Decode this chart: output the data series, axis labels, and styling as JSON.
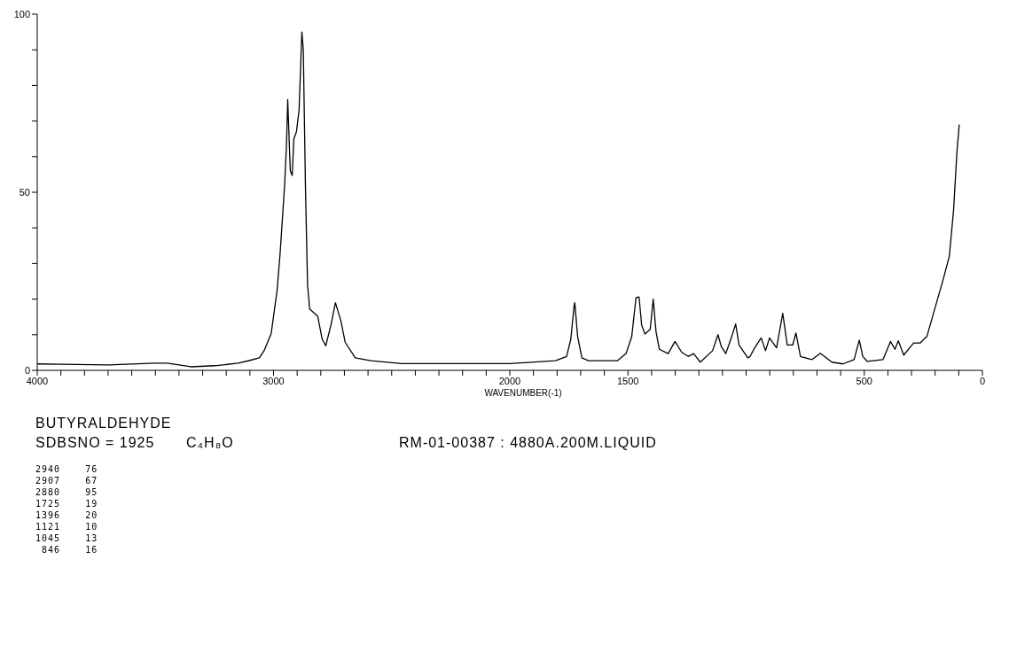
{
  "chart_data": {
    "type": "line",
    "title": "BUTYRALDEHYDE",
    "xlabel": "WAVENUMBER(-1)",
    "annotations": [
      "SDBSNO = 1925",
      "C₄H₈O",
      "RM-01-00387 : 4880A.200M.LIQUID",
      "2940    76",
      "2907    67",
      "2880    95",
      "1725    19",
      "1396    20",
      "1121    10",
      "1045    13",
      " 846    16"
    ],
    "xlim": [
      4000,
      0
    ],
    "xticks": [
      {
        "value": 4000,
        "label": "4000"
      },
      {
        "value": 3900,
        "label": null
      },
      {
        "value": 3800,
        "label": null
      },
      {
        "value": 3700,
        "label": null
      },
      {
        "value": 3600,
        "label": null
      },
      {
        "value": 3500,
        "label": null
      },
      {
        "value": 3400,
        "label": null
      },
      {
        "value": 3300,
        "label": null
      },
      {
        "value": 3200,
        "label": null
      },
      {
        "value": 3100,
        "label": null
      },
      {
        "value": 3000,
        "label": "3000"
      },
      {
        "value": 2900,
        "label": null
      },
      {
        "value": 2800,
        "label": null
      },
      {
        "value": 2700,
        "label": null
      },
      {
        "value": 2600,
        "label": null
      },
      {
        "value": 2500,
        "label": null
      },
      {
        "value": 2400,
        "label": null
      },
      {
        "value": 2300,
        "label": null
      },
      {
        "value": 2200,
        "label": null
      },
      {
        "value": 2100,
        "label": null
      },
      {
        "value": 2000,
        "label": "2000"
      },
      {
        "value": 1900,
        "label": null
      },
      {
        "value": 1800,
        "label": null
      },
      {
        "value": 1700,
        "label": null
      },
      {
        "value": 1600,
        "label": null
      },
      {
        "value": 1500,
        "label": "1500"
      },
      {
        "value": 1400,
        "label": null
      },
      {
        "value": 1300,
        "label": null
      },
      {
        "value": 1200,
        "label": null
      },
      {
        "value": 1100,
        "label": null
      },
      {
        "value": 1000,
        "label": null
      },
      {
        "value": 900,
        "label": null
      },
      {
        "value": 800,
        "label": null
      },
      {
        "value": 700,
        "label": null
      },
      {
        "value": 600,
        "label": null
      },
      {
        "value": 500,
        "label": "500"
      },
      {
        "value": 400,
        "label": null
      },
      {
        "value": 300,
        "label": null
      },
      {
        "value": 200,
        "label": null
      },
      {
        "value": 100,
        "label": null
      },
      {
        "value": 0,
        "label": "0"
      }
    ],
    "ylim": [
      0,
      100
    ],
    "yticks": [
      0,
      {
        "value": 10,
        "label": null
      },
      {
        "value": 20,
        "label": null
      },
      {
        "value": 30,
        "label": null
      },
      {
        "value": 40,
        "label": null
      },
      50,
      {
        "value": 60,
        "label": null
      },
      {
        "value": 70,
        "label": null
      },
      {
        "value": 80,
        "label": null
      },
      {
        "value": 90,
        "label": null
      },
      100
    ],
    "series": [
      {
        "color": "#000000",
        "x": [
          4000,
          3900,
          3700,
          3500,
          3450,
          3350,
          3250,
          3150,
          3100,
          3060,
          3040,
          3010,
          2985,
          2972,
          2953,
          2945,
          2940,
          2929,
          2921,
          2914,
          2903,
          2892,
          2880,
          2874,
          2865,
          2856,
          2847,
          2813,
          2794,
          2779,
          2757,
          2738,
          2715,
          2697,
          2654,
          2588,
          2457,
          2000,
          1807,
          1760,
          1742,
          1728,
          1725,
          1713,
          1695,
          1667,
          1545,
          1508,
          1484,
          1466,
          1453,
          1442,
          1428,
          1406,
          1393,
          1381,
          1367,
          1330,
          1301,
          1273,
          1245,
          1222,
          1194,
          1142,
          1119,
          1105,
          1086,
          1063,
          1044,
          1030,
          993,
          983,
          964,
          936,
          918,
          901,
          871,
          845,
          826,
          803,
          789,
          770,
          722,
          686,
          637,
          590,
          543,
          521,
          506,
          487,
          421,
          389,
          370,
          356,
          333,
          291,
          263,
          235,
          207,
          169,
          140,
          122,
          108,
          98
        ],
        "values": [
          1.8,
          1.7,
          1.5,
          2.0,
          2.0,
          1.0,
          1.3,
          2.0,
          2.8,
          3.5,
          5.5,
          10.3,
          22.4,
          33,
          52,
          63.5,
          76,
          56,
          54.7,
          65,
          67,
          73,
          95,
          90,
          52,
          24,
          17.2,
          15.2,
          8.7,
          6.9,
          12.7,
          19,
          13.9,
          7.9,
          3.5,
          2.7,
          1.9,
          1.9,
          2.7,
          3.9,
          8.7,
          18,
          19,
          9.5,
          3.5,
          2.7,
          2.7,
          4.7,
          9.5,
          20.4,
          20.6,
          12.7,
          10.2,
          11.5,
          20,
          10.7,
          5.9,
          4.7,
          8.1,
          5.1,
          3.9,
          4.7,
          2.3,
          5.5,
          10,
          6.7,
          4.7,
          9.1,
          13,
          7.1,
          3.5,
          3.9,
          6.3,
          9.1,
          5.5,
          9.1,
          6.3,
          16,
          7.1,
          7.1,
          10.5,
          3.9,
          3.0,
          4.8,
          2.3,
          1.8,
          3.0,
          8.5,
          3.9,
          2.5,
          3.0,
          8.1,
          5.9,
          8.3,
          4.3,
          7.7,
          7.7,
          9.5,
          16,
          24.8,
          32,
          45,
          61,
          69
        ]
      }
    ]
  }
}
